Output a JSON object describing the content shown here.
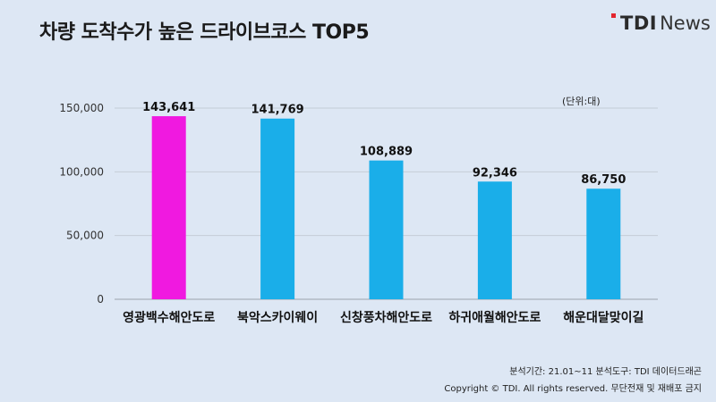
{
  "header": {
    "title": "차량 도착수가 높은 드라이브코스 TOP5",
    "logo_bold": "TDI",
    "logo_light": "News"
  },
  "unit_label": "(단위:대)",
  "colors": {
    "background": "#dde7f4",
    "highlight_bar": "#f019e0",
    "bar": "#1aaee9",
    "logo_accent": "#e3262f"
  },
  "footer": {
    "period": "분석기간: 21.01~11      분석도구: TDI 데이터드래곤",
    "copyright": "Copyright © TDI. All rights reserved. 무단전재 및 재배포 금지"
  },
  "chart_data": {
    "type": "bar",
    "title": "차량 도착수가 높은 드라이브코스 TOP5",
    "categories": [
      "영광백수해안도로",
      "북악스카이웨이",
      "신창풍차해안도로",
      "하귀애월해안도로",
      "해운대달맞이길"
    ],
    "values": [
      143641,
      141769,
      108889,
      92346,
      86750
    ],
    "value_labels": [
      "143,641",
      "141,769",
      "108,889",
      "92,346",
      "86,750"
    ],
    "highlight_index": 0,
    "ylim": [
      0,
      150000
    ],
    "yticks": [
      0,
      50000,
      100000,
      150000
    ],
    "ytick_labels": [
      "0",
      "50,000",
      "100,000",
      "150,000"
    ],
    "grid": true,
    "xlabel": "",
    "ylabel": ""
  }
}
